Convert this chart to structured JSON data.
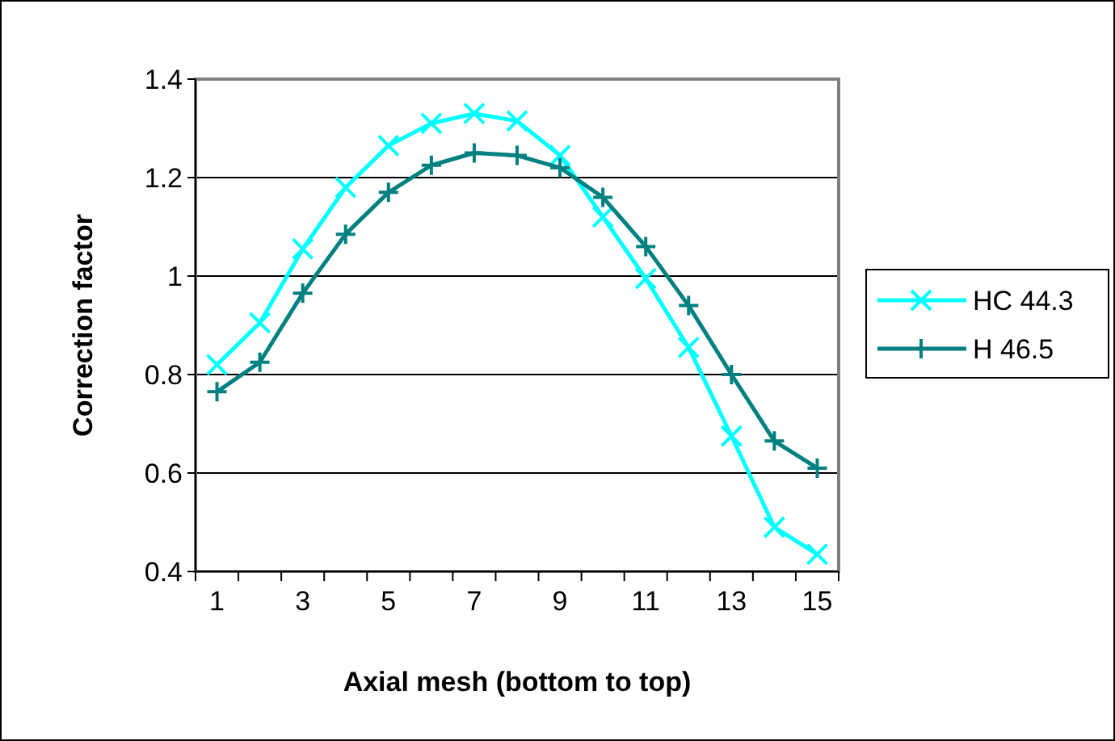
{
  "chart_data": {
    "type": "line",
    "xlabel": "Axial mesh (bottom to top)",
    "ylabel": "Correction factor",
    "x": [
      1,
      2,
      3,
      4,
      5,
      6,
      7,
      8,
      9,
      10,
      11,
      12,
      13,
      14,
      15
    ],
    "xlim": [
      0.5,
      15.5
    ],
    "xticks": [
      {
        "value": 0.5,
        "label": null
      },
      1,
      {
        "value": 1.5,
        "label": null
      },
      {
        "value": 2.5,
        "label": null
      },
      3,
      {
        "value": 3.5,
        "label": null
      },
      {
        "value": 4.5,
        "label": null
      },
      5,
      {
        "value": 5.5,
        "label": null
      },
      {
        "value": 6.5,
        "label": null
      },
      7,
      {
        "value": 7.5,
        "label": null
      },
      {
        "value": 8.5,
        "label": null
      },
      9,
      {
        "value": 9.5,
        "label": null
      },
      {
        "value": 10.5,
        "label": null
      },
      11,
      {
        "value": 11.5,
        "label": null
      },
      {
        "value": 12.5,
        "label": null
      },
      13,
      {
        "value": 13.5,
        "label": null
      },
      {
        "value": 14.5,
        "label": null
      },
      15,
      {
        "value": 15.5,
        "label": null
      }
    ],
    "series": [
      {
        "name": "HC 44.3",
        "color": "#00ffff",
        "marker": "cross",
        "values": [
          0.82,
          0.905,
          1.055,
          1.18,
          1.265,
          1.31,
          1.33,
          1.315,
          1.245,
          1.12,
          0.995,
          0.855,
          0.675,
          0.49,
          0.435
        ]
      },
      {
        "name": "H 46.5",
        "color": "#008080",
        "marker": "plus",
        "values": [
          0.765,
          0.825,
          0.965,
          1.085,
          1.17,
          1.225,
          1.25,
          1.245,
          1.22,
          1.16,
          1.06,
          0.94,
          0.8,
          0.665,
          0.61
        ]
      }
    ],
    "ylim": [
      0.4,
      1.4
    ],
    "yticks": [
      0.4,
      0.6,
      0.8,
      {
        "value": 1,
        "label": "1"
      },
      1.2,
      1.4
    ],
    "grid": "y",
    "legend": "right",
    "line_style": "solid"
  }
}
